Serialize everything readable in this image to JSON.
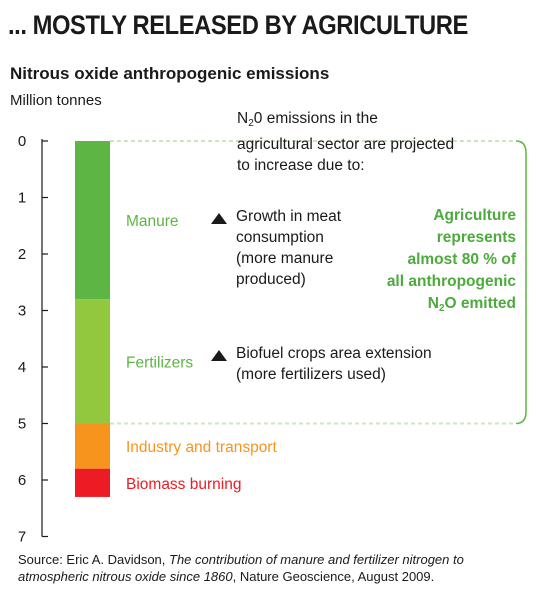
{
  "title": "... MOSTLY RELEASED BY AGRICULTURE",
  "chart_data": {
    "type": "bar",
    "title": "Nitrous oxide anthropogenic emissions",
    "ylabel": "Million tonnes",
    "ylim": [
      0,
      7
    ],
    "y_inverted": true,
    "yticks": [
      "0",
      "1",
      "2",
      "3",
      "4",
      "5",
      "6",
      "7"
    ],
    "stacked_segments": [
      {
        "name": "Manure",
        "start": 0,
        "end": 2.8,
        "value": 2.8,
        "color": "#5db543"
      },
      {
        "name": "Fertilizers",
        "start": 2.8,
        "end": 5.0,
        "value": 2.2,
        "color": "#92c83e"
      },
      {
        "name": "Industry and transport",
        "start": 5.0,
        "end": 5.8,
        "value": 0.8,
        "color": "#f7941d"
      },
      {
        "name": "Biomass burning",
        "start": 5.8,
        "end": 6.3,
        "value": 0.5,
        "color": "#ed1c24"
      }
    ],
    "grid": false
  },
  "intro": {
    "prefix": "N",
    "subscript": "2",
    "line1_rest": "0 emissions in the",
    "line2": "agricultural sector are projected",
    "line3": "to increase due to:"
  },
  "annotations": {
    "manure": [
      "Growth in meat",
      "consumption",
      "(more manure",
      "produced)"
    ],
    "fertilizers": [
      "Biofuel crops area extension",
      "(more fertilizers used)"
    ]
  },
  "callout": {
    "line1": "Agriculture",
    "line2": "represents",
    "line3": "almost 80 % of",
    "line4": "all anthropogenic",
    "last_prefix": "N",
    "last_sub": "2",
    "last_rest": "O emitted"
  },
  "source": {
    "prefix": "Source: Eric A. Davidson, ",
    "italic": "The contribution of manure and fertilizer nitrogen to atmospheric nitrous oxide since 1860",
    "suffix": ", Nature Geoscience, August 2009."
  }
}
